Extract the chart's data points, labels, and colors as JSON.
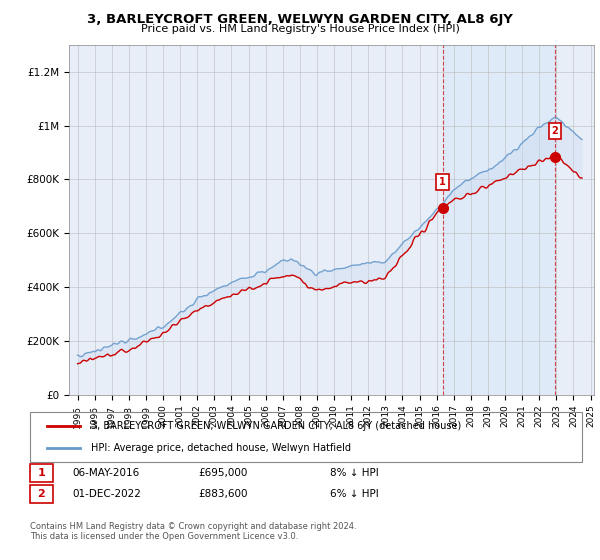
{
  "title": "3, BARLEYCROFT GREEN, WELWYN GARDEN CITY, AL8 6JY",
  "subtitle": "Price paid vs. HM Land Registry's House Price Index (HPI)",
  "legend_line1": "3, BARLEYCROFT GREEN, WELWYN GARDEN CITY, AL8 6JY (detached house)",
  "legend_line2": "HPI: Average price, detached house, Welwyn Hatfield",
  "annotation1": {
    "label": "1",
    "date": "06-MAY-2016",
    "price": "£695,000",
    "note": "8% ↓ HPI"
  },
  "annotation2": {
    "label": "2",
    "date": "01-DEC-2022",
    "price": "£883,600",
    "note": "6% ↓ HPI"
  },
  "footer": "Contains HM Land Registry data © Crown copyright and database right 2024.\nThis data is licensed under the Open Government Licence v3.0.",
  "sale1_year": 2016.35,
  "sale1_price": 695000,
  "sale2_year": 2022.92,
  "sale2_price": 883600,
  "red_line_color": "#cc0000",
  "blue_line_color": "#6699cc",
  "shade_color": "#ddeeff",
  "background_color": "#e8eef8",
  "ylim": [
    0,
    1300000
  ],
  "xlim_start": 1994.5,
  "xlim_end": 2025.2,
  "yticks": [
    0,
    200000,
    400000,
    600000,
    800000,
    1000000,
    1200000
  ],
  "ytick_labels": [
    "£0",
    "£200K",
    "£400K",
    "£600K",
    "£800K",
    "£1M",
    "£1.2M"
  ],
  "xticks": [
    1995,
    1996,
    1997,
    1998,
    1999,
    2000,
    2001,
    2002,
    2003,
    2004,
    2005,
    2006,
    2007,
    2008,
    2009,
    2010,
    2011,
    2012,
    2013,
    2014,
    2015,
    2016,
    2017,
    2018,
    2019,
    2020,
    2021,
    2022,
    2023,
    2024,
    2025
  ]
}
